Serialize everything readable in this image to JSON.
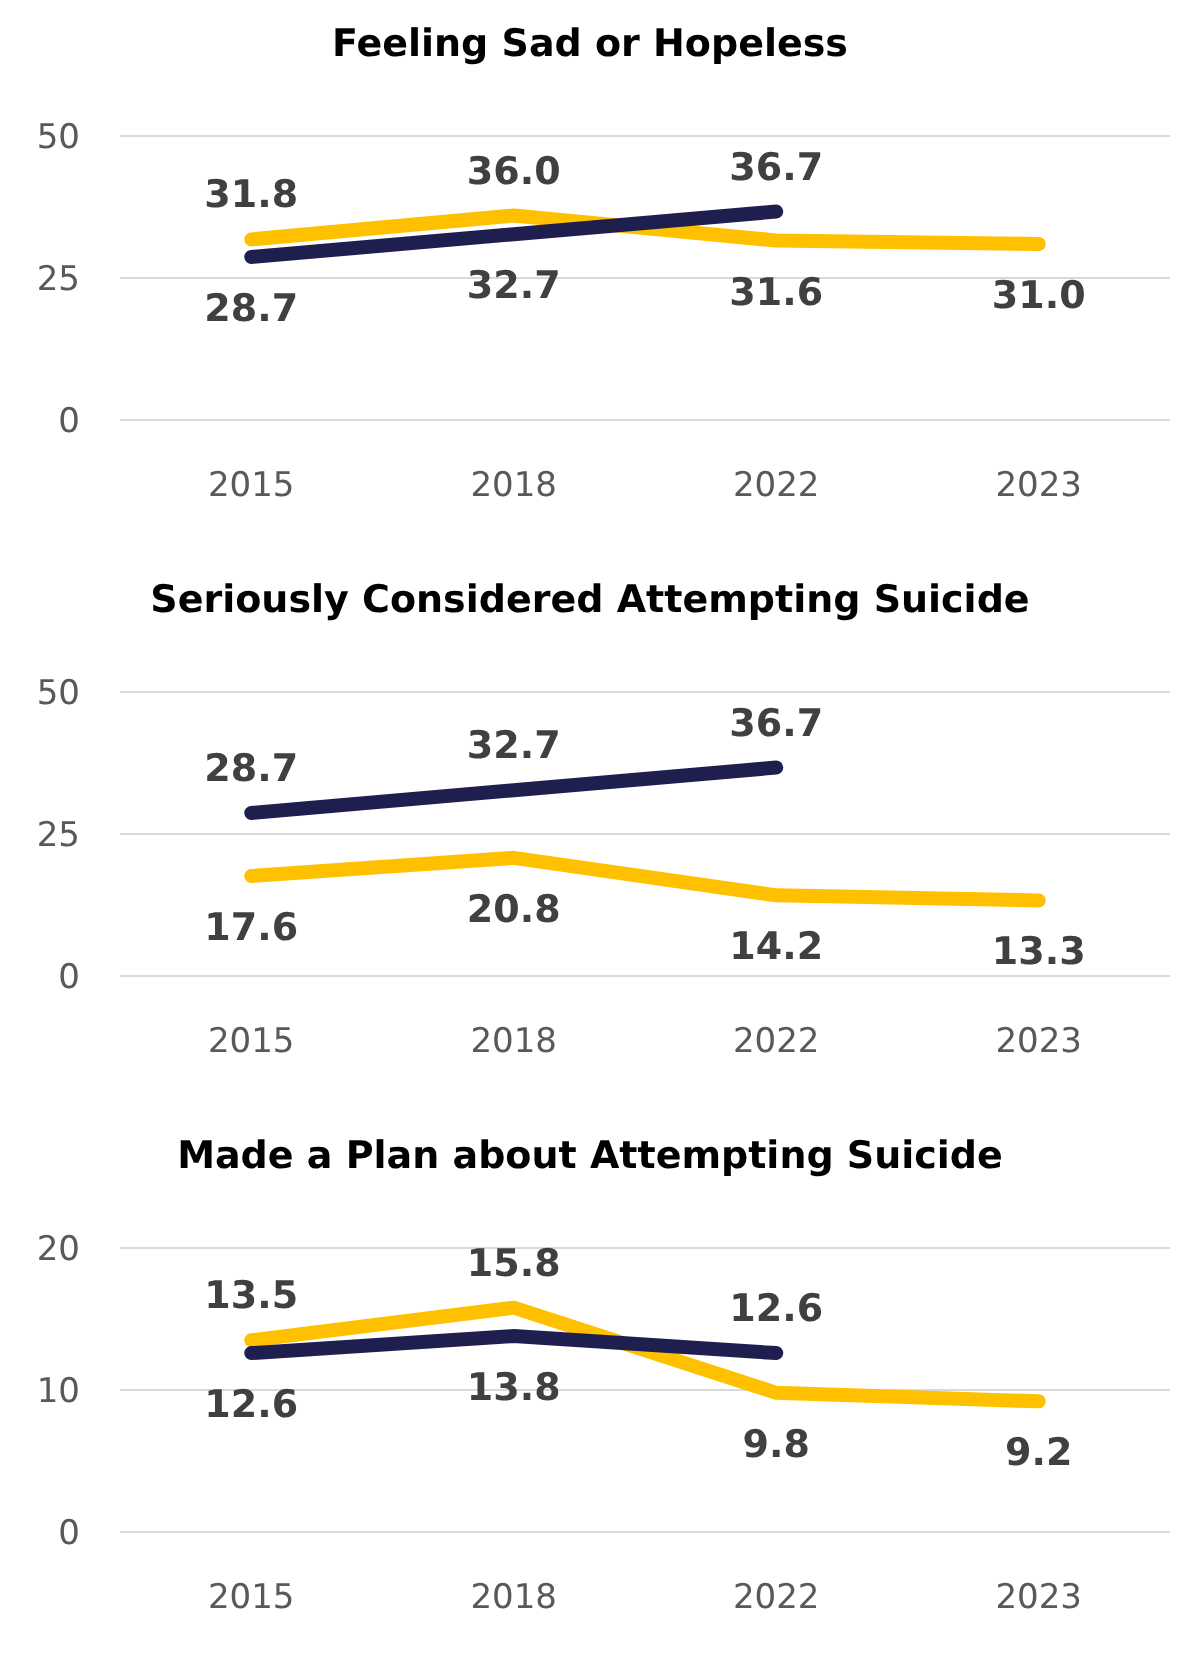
{
  "chart_data": [
    {
      "type": "line",
      "title": "Feeling Sad or Hopeless",
      "categories": [
        "2015",
        "2018",
        "2022",
        "2023"
      ],
      "ylim": [
        0,
        50
      ],
      "yticks": [
        0,
        25,
        50
      ],
      "grid": "y",
      "marker": "none",
      "line_style": "solid",
      "series": [
        {
          "color": "#ffc000",
          "values": [
            31.8,
            36.0,
            31.6,
            31.0
          ],
          "value_labels": [
            "31.8",
            "36.0",
            "31.6",
            "31.0"
          ]
        },
        {
          "color": "#1f1f4f",
          "values": [
            28.7,
            32.7,
            36.7,
            null
          ],
          "value_labels": [
            "28.7",
            "32.7",
            "36.7",
            null
          ]
        }
      ]
    },
    {
      "type": "line",
      "title": "Seriously Considered Attempting Suicide",
      "categories": [
        "2015",
        "2018",
        "2022",
        "2023"
      ],
      "ylim": [
        0,
        50
      ],
      "yticks": [
        0,
        25,
        50
      ],
      "grid": "y",
      "marker": "none",
      "line_style": "solid",
      "series": [
        {
          "color": "#ffc000",
          "values": [
            17.6,
            20.8,
            14.2,
            13.3
          ],
          "value_labels": [
            "17.6",
            "20.8",
            "14.2",
            "13.3"
          ]
        },
        {
          "color": "#1f1f4f",
          "values": [
            28.7,
            32.7,
            36.7,
            null
          ],
          "value_labels": [
            "28.7",
            "32.7",
            "36.7",
            null
          ]
        }
      ]
    },
    {
      "type": "line",
      "title": "Made a Plan about Attempting Suicide",
      "categories": [
        "2015",
        "2018",
        "2022",
        "2023"
      ],
      "ylim": [
        0,
        20
      ],
      "yticks": [
        0,
        10,
        20
      ],
      "grid": "y",
      "marker": "none",
      "line_style": "solid",
      "series": [
        {
          "color": "#ffc000",
          "values": [
            13.5,
            15.8,
            9.8,
            9.2
          ],
          "value_labels": [
            "13.5",
            "15.8",
            "9.8",
            "9.2"
          ]
        },
        {
          "color": "#1f1f4f",
          "values": [
            12.6,
            13.8,
            12.6,
            null
          ],
          "value_labels": [
            "12.6",
            "13.8",
            "12.6",
            null
          ]
        }
      ]
    }
  ]
}
